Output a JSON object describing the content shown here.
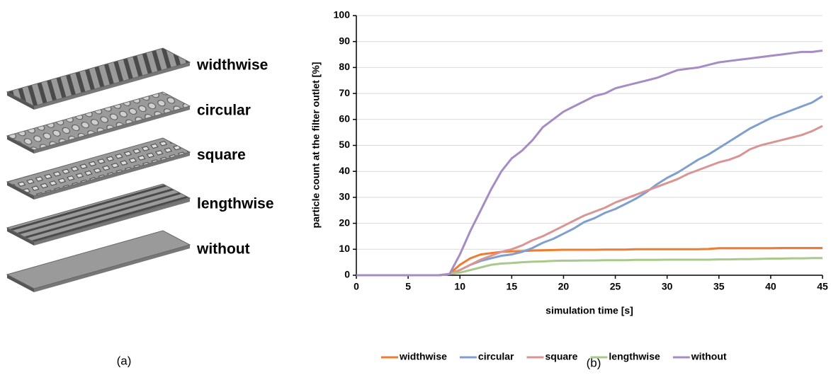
{
  "illustration": {
    "labels": [
      "widthwise",
      "circular",
      "square",
      "lengthwise",
      "without"
    ]
  },
  "captions": [
    "(a)",
    "(b)"
  ],
  "chart_data": {
    "type": "line",
    "xlabel": "simulation time [s]",
    "ylabel": "particle count at the filter outlet [%]",
    "x": [
      0,
      1,
      2,
      3,
      4,
      5,
      6,
      7,
      8,
      9,
      10,
      11,
      12,
      13,
      14,
      15,
      16,
      17,
      18,
      19,
      20,
      21,
      22,
      23,
      24,
      25,
      26,
      27,
      28,
      29,
      30,
      31,
      32,
      33,
      34,
      35,
      36,
      37,
      38,
      39,
      40,
      41,
      42,
      43,
      44,
      45
    ],
    "series": [
      {
        "name": "widthwise",
        "color": "#ed7d31",
        "values": [
          0,
          0,
          0,
          0,
          0,
          0,
          0,
          0,
          0,
          0.5,
          4,
          6.5,
          8,
          8.5,
          9,
          9.2,
          9.3,
          9.5,
          9.6,
          9.7,
          9.8,
          9.8,
          9.8,
          9.8,
          9.9,
          9.9,
          9.9,
          10,
          10,
          10,
          10,
          10,
          10,
          10,
          10.1,
          10.4,
          10.4,
          10.4,
          10.4,
          10.4,
          10.4,
          10.5,
          10.5,
          10.5,
          10.5,
          10.5
        ]
      },
      {
        "name": "circular",
        "color": "#7f9fcf",
        "values": [
          0,
          0,
          0,
          0,
          0,
          0,
          0,
          0,
          0,
          0.5,
          2,
          4,
          5.5,
          6.5,
          7.5,
          8,
          9,
          10.5,
          12.5,
          14,
          16,
          18,
          20.5,
          22,
          24,
          25.5,
          27.5,
          29.5,
          32,
          35,
          37.5,
          39.5,
          42,
          44.5,
          46.5,
          49,
          51.5,
          54,
          56.5,
          58.5,
          60.5,
          62,
          63.5,
          65,
          66.5,
          69
        ]
      },
      {
        "name": "square",
        "color": "#d99594",
        "values": [
          0,
          0,
          0,
          0,
          0,
          0,
          0,
          0,
          0,
          0.5,
          2,
          4,
          6,
          7.5,
          9,
          10,
          11.5,
          13.5,
          15,
          17,
          19,
          21,
          23,
          24.5,
          26,
          28,
          29.5,
          31,
          32.5,
          34,
          35.5,
          37,
          39,
          40.5,
          42,
          43.5,
          44.5,
          46,
          48.5,
          50,
          51,
          52,
          53,
          54,
          55.5,
          57.5
        ]
      },
      {
        "name": "lengthwise",
        "color": "#a9c98a",
        "values": [
          0,
          0,
          0,
          0,
          0,
          0,
          0,
          0,
          0,
          0.5,
          1,
          2,
          3,
          4,
          4.5,
          4.7,
          5,
          5.2,
          5.3,
          5.5,
          5.6,
          5.6,
          5.7,
          5.7,
          5.8,
          5.8,
          5.8,
          5.9,
          5.9,
          5.9,
          6,
          6,
          6,
          6,
          6,
          6.1,
          6.1,
          6.2,
          6.2,
          6.3,
          6.4,
          6.4,
          6.5,
          6.5,
          6.6,
          6.6
        ]
      },
      {
        "name": "without",
        "color": "#a58cc4",
        "values": [
          0,
          0,
          0,
          0,
          0,
          0,
          0,
          0,
          0,
          0.5,
          8,
          17,
          25,
          33,
          40,
          45,
          48,
          52,
          57,
          60,
          63,
          65,
          67,
          69,
          70,
          72,
          73,
          74,
          75,
          76,
          77.5,
          79,
          79.5,
          80,
          81,
          82,
          82.5,
          83,
          83.5,
          84,
          84.5,
          85,
          85.5,
          86,
          86,
          86.5
        ]
      }
    ],
    "xlim": [
      0,
      45
    ],
    "xticks": [
      0,
      5,
      10,
      15,
      20,
      25,
      30,
      35,
      40,
      45
    ],
    "ylim": [
      0,
      100
    ],
    "yticks": [
      0,
      10,
      20,
      30,
      40,
      50,
      60,
      70,
      80,
      90,
      100
    ],
    "grid": true,
    "legend": "bottom"
  }
}
